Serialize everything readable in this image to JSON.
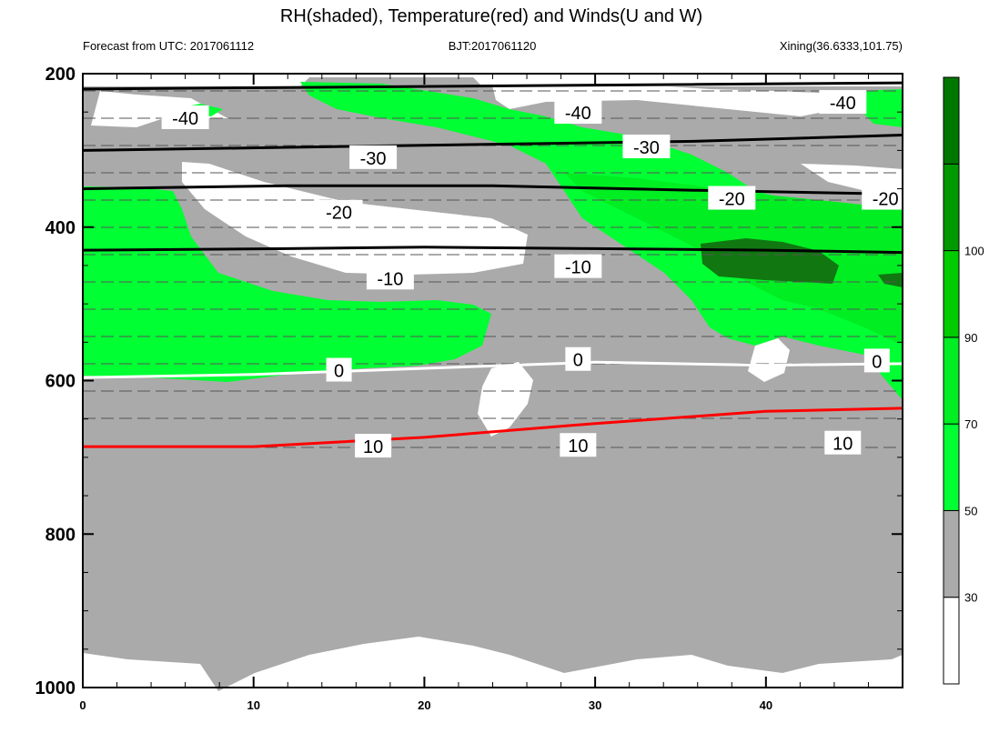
{
  "chart_data": {
    "type": "heatmap",
    "title": "RH(shaded), Temperature(red) and Winds(U and W)",
    "subtitle_left": "Forecast from UTC: 2017061112",
    "subtitle_center": "BJT:2017061120",
    "subtitle_right": "Xining(36.6333,101.75)",
    "x_ticks": [
      0,
      10,
      20,
      30,
      40
    ],
    "xlim": [
      0,
      48
    ],
    "y_ticks": [
      200,
      400,
      600,
      800,
      1000
    ],
    "ylim": [
      200,
      1000
    ],
    "y_inverted": true,
    "colorbar": {
      "ticks": [
        30,
        50,
        70,
        90,
        100
      ],
      "colors": [
        "#ffffff",
        "#aaaaaa",
        "#00ff33",
        "#00ee22",
        "#00cc00",
        "#009900",
        "#007700"
      ]
    },
    "colors": {
      "grey": "#aaaaaa",
      "green": "#00ff33",
      "green2": "#00ee22",
      "green3": "#00cc00",
      "green4": "#009900",
      "dark": "#117711",
      "temp_neg": "#000000",
      "temp_zero": "#ffffff",
      "temp_pos": "#ff0000"
    },
    "isotherms": [
      {
        "level": "-40",
        "color": "#000000",
        "points": [
          [
            0,
            220
          ],
          [
            12,
            218
          ],
          [
            24,
            216
          ],
          [
            36,
            214
          ],
          [
            48,
            212
          ]
        ],
        "labels": [
          [
            6,
            258
          ],
          [
            29,
            251
          ],
          [
            44.5,
            238
          ]
        ]
      },
      {
        "level": "-30",
        "color": "#000000",
        "points": [
          [
            0,
            300
          ],
          [
            12,
            296
          ],
          [
            24,
            292
          ],
          [
            36,
            288
          ],
          [
            48,
            280
          ]
        ],
        "labels": [
          [
            17,
            310
          ],
          [
            33,
            296
          ]
        ]
      },
      {
        "level": "-20",
        "color": "#000000",
        "points": [
          [
            0,
            350
          ],
          [
            12,
            346
          ],
          [
            24,
            346
          ],
          [
            36,
            352
          ],
          [
            48,
            357
          ]
        ],
        "labels": [
          [
            15,
            381
          ],
          [
            38,
            363
          ],
          [
            47,
            363
          ]
        ]
      },
      {
        "level": "-10",
        "color": "#000000",
        "points": [
          [
            0,
            430
          ],
          [
            12,
            428
          ],
          [
            20,
            426
          ],
          [
            30,
            428
          ],
          [
            40,
            430
          ],
          [
            48,
            433
          ]
        ],
        "labels": [
          [
            18,
            467
          ],
          [
            29,
            452
          ]
        ]
      },
      {
        "level": "0",
        "color": "#ffffff",
        "points": [
          [
            0,
            596
          ],
          [
            10,
            592
          ],
          [
            20,
            584
          ],
          [
            30,
            576
          ],
          [
            40,
            580
          ],
          [
            48,
            578
          ]
        ],
        "labels": [
          [
            15,
            587
          ],
          [
            29,
            573
          ],
          [
            46.5,
            575
          ]
        ]
      },
      {
        "level": "10",
        "color": "#ff0000",
        "points": [
          [
            0,
            686
          ],
          [
            10,
            686
          ],
          [
            20,
            674
          ],
          [
            30,
            656
          ],
          [
            40,
            640
          ],
          [
            48,
            636
          ]
        ],
        "labels": [
          [
            17,
            686
          ],
          [
            29,
            685
          ],
          [
            44.5,
            682
          ]
        ]
      }
    ]
  }
}
